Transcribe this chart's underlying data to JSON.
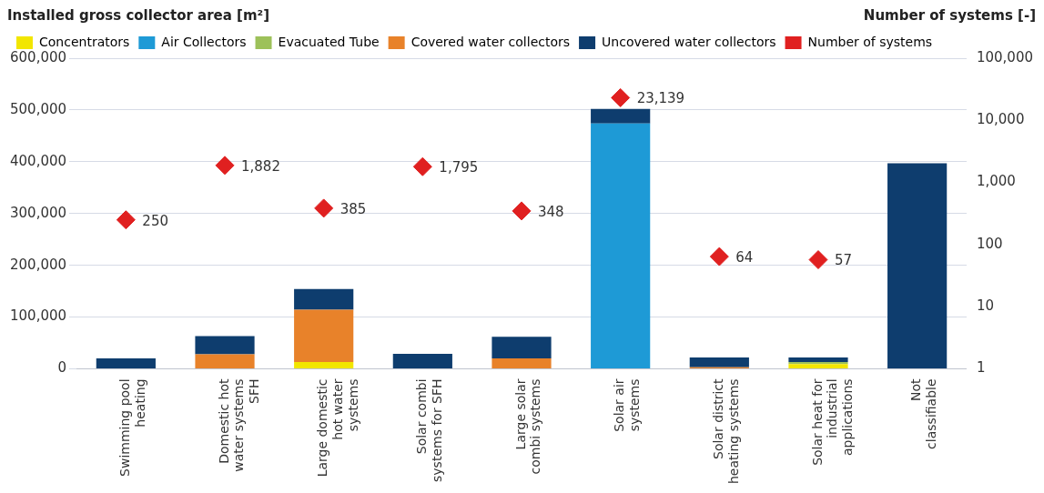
{
  "chart_data": {
    "type": "bar",
    "stacked": true,
    "ylabel": "Installed gross collector area [m²]",
    "y2label": "Number of systems [-]",
    "categories": [
      "Swimming pool heating",
      "Domestic hot water systems SFH",
      "Large domestic hot water systems",
      "Solar combi systems for SFH",
      "Large solar combi systems",
      "Solar air systems",
      "Solar district heating systems",
      "Solar heat for industrial applications",
      "Not classifiable"
    ],
    "series": [
      {
        "name": "Concentrators",
        "color": "#f2e600",
        "values": [
          0,
          0,
          13000,
          0,
          0,
          0,
          0,
          9000,
          0
        ]
      },
      {
        "name": "Air Collectors",
        "color": "#1e9ad6",
        "values": [
          0,
          0,
          0,
          0,
          0,
          474000,
          0,
          0,
          0
        ]
      },
      {
        "name": "Evacuated Tube",
        "color": "#9dc15a",
        "values": [
          0,
          0,
          0,
          0,
          0,
          0,
          0,
          4000,
          0
        ]
      },
      {
        "name": "Covered water collectors",
        "color": "#e8822a",
        "values": [
          0,
          28000,
          101000,
          0,
          20000,
          0,
          3000,
          0,
          0
        ]
      },
      {
        "name": "Uncovered water collectors",
        "color": "#0e3d6e",
        "values": [
          20000,
          35000,
          40000,
          29000,
          42000,
          28000,
          19000,
          9000,
          397000
        ]
      },
      {
        "name": "Number of systems",
        "type": "scatter",
        "axis": "y2",
        "marker": "diamond",
        "color": "#e02020",
        "x": [
          "Swimming pool heating",
          "Domestic hot water systems SFH",
          "Large domestic hot water systems",
          "Solar combi systems for SFH",
          "Large solar combi systems",
          "Solar air systems",
          "Solar district heating systems",
          "Solar heat for industrial applications"
        ],
        "values": [
          250,
          1882,
          385,
          1795,
          348,
          23139,
          64,
          57
        ],
        "value_labels": [
          "250",
          "1,882",
          "385",
          "1,795",
          "348",
          "23,139",
          "64",
          "57"
        ]
      }
    ],
    "ylim": [
      0,
      600000
    ],
    "yticks": [
      0,
      {
        "value": 100000,
        "label": "100,000"
      },
      {
        "value": 200000,
        "label": "200,000"
      },
      {
        "value": 300000,
        "label": "300,000"
      },
      {
        "value": 400000,
        "label": "400,000"
      },
      {
        "value": 500000,
        "label": "500,000"
      },
      {
        "value": 600000,
        "label": "600,000"
      }
    ],
    "y2lim": [
      1,
      100000
    ],
    "y2ticks": [
      1,
      10,
      100,
      {
        "value": 1000,
        "label": "1,000"
      },
      {
        "value": 10000,
        "label": "10,000"
      },
      {
        "value": 100000,
        "label": "100,000"
      }
    ],
    "log": "y2",
    "grid": "y",
    "legend": "top left"
  }
}
